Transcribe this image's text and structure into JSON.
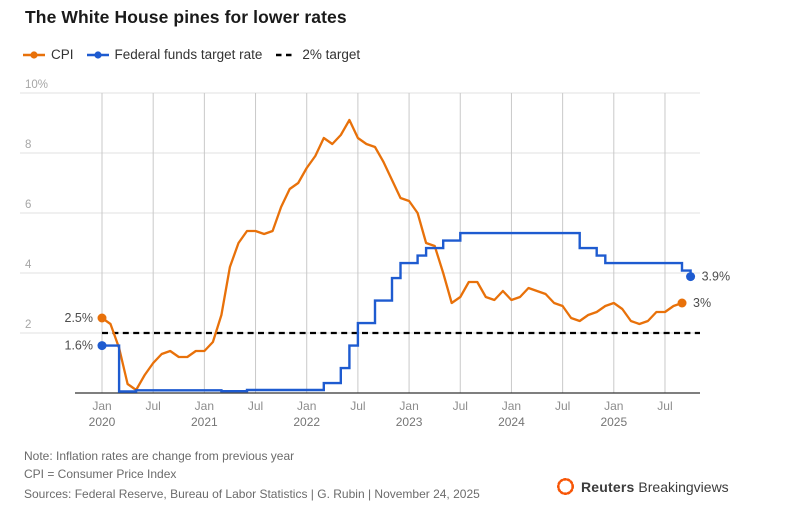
{
  "title": "The White House pines for lower rates",
  "legend": {
    "items": [
      {
        "id": "cpi",
        "label": "CPI",
        "color": "#e8710a",
        "marker": "line-dot"
      },
      {
        "id": "fed",
        "label": "Federal funds target rate",
        "color": "#1e5bd0",
        "marker": "line-dot"
      },
      {
        "id": "target",
        "label": "2% target",
        "color": "#000000",
        "marker": "dashed-line"
      }
    ]
  },
  "chart_data": {
    "type": "line",
    "title": "The White House pines for lower rates",
    "x_axis": {
      "start": "2020-01",
      "ticks": [
        {
          "date": "2020-01",
          "month": "Jan",
          "year": "2020"
        },
        {
          "date": "2020-07",
          "month": "Jul"
        },
        {
          "date": "2021-01",
          "month": "Jan",
          "year": "2021"
        },
        {
          "date": "2021-07",
          "month": "Jul"
        },
        {
          "date": "2022-01",
          "month": "Jan",
          "year": "2022"
        },
        {
          "date": "2022-07",
          "month": "Jul"
        },
        {
          "date": "2023-01",
          "month": "Jan",
          "year": "2023"
        },
        {
          "date": "2023-07",
          "month": "Jul"
        },
        {
          "date": "2024-01",
          "month": "Jan",
          "year": "2024"
        },
        {
          "date": "2024-07",
          "month": "Jul"
        },
        {
          "date": "2025-01",
          "month": "Jan",
          "year": "2025"
        },
        {
          "date": "2025-07",
          "month": "Jul"
        }
      ]
    },
    "y_axis": {
      "range": [
        0,
        10
      ],
      "ticks": [
        {
          "value": 10,
          "label": "10%"
        },
        {
          "value": 8,
          "label": "8"
        },
        {
          "value": 6,
          "label": "6"
        },
        {
          "value": 4,
          "label": "4"
        },
        {
          "value": 2,
          "label": "2"
        }
      ]
    },
    "reference_line": {
      "label": "2% target",
      "value": 2,
      "style": "dashed",
      "color": "#000000"
    },
    "series": [
      {
        "name": "CPI",
        "color": "#e8710a",
        "unit": "% change from previous year",
        "monthly_from": "2020-01",
        "values": [
          2.5,
          2.3,
          1.5,
          0.3,
          0.1,
          0.6,
          1.0,
          1.3,
          1.4,
          1.2,
          1.2,
          1.4,
          1.4,
          1.7,
          2.6,
          4.2,
          5.0,
          5.4,
          5.4,
          5.3,
          5.4,
          6.2,
          6.8,
          7.0,
          7.5,
          7.9,
          8.5,
          8.3,
          8.6,
          9.1,
          8.5,
          8.3,
          8.2,
          7.7,
          7.1,
          6.5,
          6.4,
          6.0,
          5.0,
          4.9,
          4.0,
          3.0,
          3.2,
          3.7,
          3.7,
          3.2,
          3.1,
          3.4,
          3.1,
          3.2,
          3.5,
          3.4,
          3.3,
          3.0,
          2.9,
          2.5,
          2.4,
          2.6,
          2.7,
          2.9,
          3.0,
          2.8,
          2.4,
          2.3,
          2.4,
          2.7,
          2.7,
          2.9,
          3.0
        ],
        "start_label": "2.5%",
        "end_label": "3%"
      },
      {
        "name": "Federal funds target rate",
        "color": "#1e5bd0",
        "unit": "%",
        "render": "step",
        "steps": [
          {
            "date": "2020-01",
            "rate": 1.58
          },
          {
            "date": "2020-03",
            "rate": 0.05
          },
          {
            "date": "2020-05",
            "rate": 0.09
          },
          {
            "date": "2021-03",
            "rate": 0.06
          },
          {
            "date": "2021-06",
            "rate": 0.1
          },
          {
            "date": "2022-03",
            "rate": 0.33
          },
          {
            "date": "2022-05",
            "rate": 0.83
          },
          {
            "date": "2022-06",
            "rate": 1.58
          },
          {
            "date": "2022-07",
            "rate": 2.33
          },
          {
            "date": "2022-09",
            "rate": 3.08
          },
          {
            "date": "2022-11",
            "rate": 3.83
          },
          {
            "date": "2022-12",
            "rate": 4.33
          },
          {
            "date": "2023-02",
            "rate": 4.58
          },
          {
            "date": "2023-03",
            "rate": 4.83
          },
          {
            "date": "2023-05",
            "rate": 5.08
          },
          {
            "date": "2023-07",
            "rate": 5.33
          },
          {
            "date": "2024-09",
            "rate": 4.83
          },
          {
            "date": "2024-11",
            "rate": 4.58
          },
          {
            "date": "2024-12",
            "rate": 4.33
          },
          {
            "date": "2025-09",
            "rate": 4.08
          },
          {
            "date": "2025-10",
            "rate": 3.88
          }
        ],
        "start_label": "1.6%",
        "end_label": "3.9%"
      }
    ]
  },
  "footer": {
    "note_line1": "Note: Inflation rates are change from previous year",
    "note_line2": "CPI = Consumer Price Index",
    "sources": "Sources: Federal Reserve, Bureau of Labor Statistics | G. Rubin | November 24, 2025",
    "brand": {
      "bold": "Reuters",
      "regular": "Breakingviews"
    }
  },
  "colors": {
    "cpi": "#e8710a",
    "fed": "#1e5bd0",
    "reference": "#000000",
    "grid_h": "#e0e0e0",
    "grid_v": "#c9c9c9",
    "axis": "#333333",
    "y_label": "#a6a6a6",
    "x_label": "#8c8c8c",
    "year_label": "#757575",
    "annotation": "#4d4d4d",
    "logo_orange": "#f75607"
  }
}
